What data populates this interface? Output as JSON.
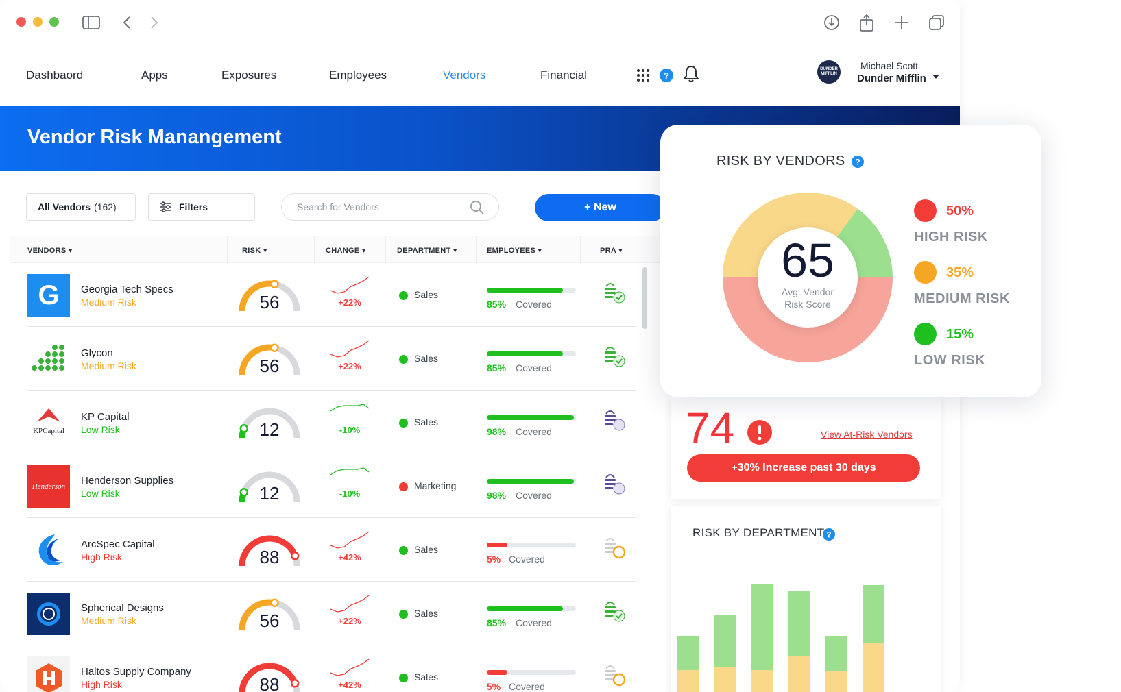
{
  "nav": {
    "items": [
      "Dashbaord",
      "Apps",
      "Exposures",
      "Employees",
      "Vendors",
      "Financial"
    ],
    "active": "Vendors",
    "user_name": "Michael Scott",
    "company": "Dunder Mifflin",
    "avatar_text": "DUNDER MIFFLIN"
  },
  "banner": {
    "title": "Vendor Risk Manangement"
  },
  "toolbar": {
    "all_vendors": "All Vendors",
    "all_vendors_count": "(162)",
    "filters": "Filters",
    "search_placeholder": "Search for Vendors",
    "new_button": "+ New"
  },
  "table": {
    "headers": [
      "VENDORS",
      "RISK",
      "CHANGE",
      "DEPARTMENT",
      "EMPLOYEES",
      "PRA"
    ],
    "rows": [
      {
        "name": "Georgia Tech Specs",
        "risk_label": "Medium Risk",
        "level": "medium",
        "score": "56",
        "score_value": 56,
        "change": "+22%",
        "department": "Sales",
        "coverage": "85%",
        "coverage_value": 0.85,
        "covered_label": "Covered",
        "logo": "G"
      },
      {
        "name": "Glycon",
        "risk_label": "Medium Risk",
        "level": "medium",
        "score": "56",
        "score_value": 56,
        "change": "+22%",
        "department": "Sales",
        "coverage": "85%",
        "coverage_value": 0.85,
        "covered_label": "Covered",
        "logo": ""
      },
      {
        "name": "KP Capital",
        "risk_label": "Low Risk",
        "level": "low",
        "score": "12",
        "score_value": 12,
        "change": "-10%",
        "department": "Sales",
        "coverage": "98%",
        "coverage_value": 0.98,
        "covered_label": "Covered",
        "logo": "KPCapital"
      },
      {
        "name": "Henderson Supplies",
        "risk_label": "Low Risk",
        "level": "low",
        "score": "12",
        "score_value": 12,
        "change": "-10%",
        "department": "Marketing",
        "coverage": "98%",
        "coverage_value": 0.98,
        "covered_label": "Covered",
        "logo": "Henderson"
      },
      {
        "name": "ArcSpec Capital",
        "risk_label": "High Risk",
        "level": "high",
        "score": "88",
        "score_value": 88,
        "change": "+42%",
        "department": "Sales",
        "coverage": "5%",
        "coverage_value": 0.05,
        "covered_label": "Covered",
        "logo": ""
      },
      {
        "name": "Spherical Designs",
        "risk_label": "Medium Risk",
        "level": "medium",
        "score": "56",
        "score_value": 56,
        "change": "+22%",
        "department": "Sales",
        "coverage": "85%",
        "coverage_value": 0.85,
        "covered_label": "Covered",
        "logo": ""
      },
      {
        "name": "Haltos Supply Company",
        "risk_label": "High Risk",
        "level": "high",
        "score": "88",
        "score_value": 88,
        "change": "+42%",
        "department": "Sales",
        "coverage": "5%",
        "coverage_value": 0.05,
        "covered_label": "Covered",
        "logo": ""
      }
    ]
  },
  "risk_by_vendors": {
    "title": "RISK BY VENDORS",
    "score": "65",
    "score_caption_1": "Avg. Vendor",
    "score_caption_2": "Risk Score",
    "legend": [
      {
        "pct": "50%",
        "label": "HIGH RISK",
        "color": "#f23c38"
      },
      {
        "pct": "35%",
        "label": "MEDIUM RISK",
        "color": "#f5a623"
      },
      {
        "pct": "15%",
        "label": "LOW RISK",
        "color": "#1fbf1f"
      }
    ],
    "segments": [
      {
        "share": 0.5,
        "color": "#f7a49a"
      },
      {
        "share": 0.35,
        "color": "#fad88a"
      },
      {
        "share": 0.15,
        "color": "#9ce08f"
      }
    ]
  },
  "at_risk": {
    "count": "74",
    "link": "View At-Risk Vendors",
    "increase": "+30% Increase past 30 days"
  },
  "risk_by_department": {
    "title": "RISK BY DEPARTMENT"
  },
  "chart_data": {
    "type": "bar",
    "stacked": true,
    "categories": [
      "",
      "",
      "",
      "",
      "",
      ""
    ],
    "series": [
      {
        "values": [
          40,
          45,
          40,
          60,
          38,
          80
        ],
        "color": "#fad88a"
      },
      {
        "values": [
          50,
          75,
          125,
          95,
          52,
          84
        ],
        "color": "#9ce08f"
      }
    ]
  },
  "colors": {
    "high": "#f23c38",
    "medium": "#f5a623",
    "low": "#1fbf1f",
    "accent": "#0f6cf0"
  }
}
